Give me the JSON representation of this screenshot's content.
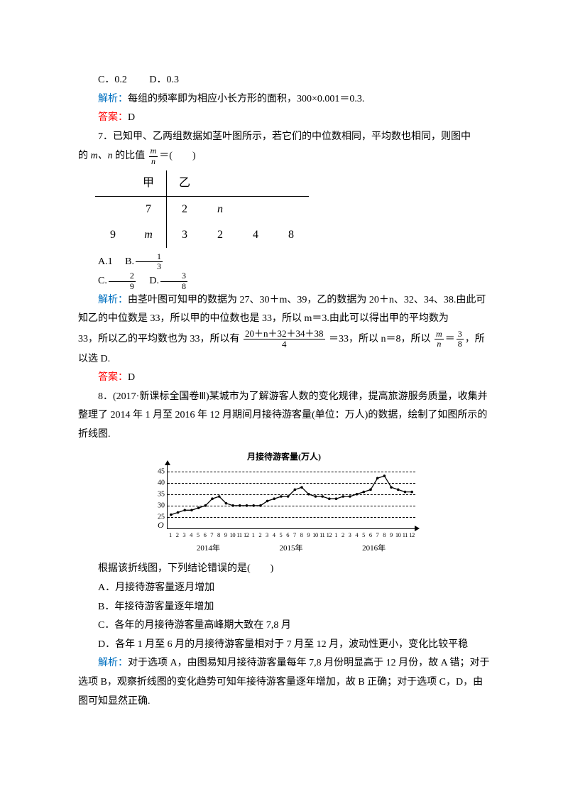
{
  "q6": {
    "option_c": "C．0.2",
    "option_d": "D．0.3",
    "analysis_label": "解析：",
    "analysis_text": "每组的频率即为相应小长方形的面积，300×0.001＝0.3.",
    "answer_label": "答案：",
    "answer_value": "D"
  },
  "q7": {
    "stem_line1": "7．已知甲、乙两组数据如茎叶图所示，若它们的中位数相同，平均数也相同，则图中",
    "stem_line2_prefix": "的 ",
    "stem_line2_vars": "m、n",
    "stem_line2_mid": " 的比值",
    "stem_line2_frac_num": "m",
    "stem_line2_frac_den": "n",
    "stem_line2_suffix": "＝(　　)",
    "stemleaf": {
      "head_left": "甲",
      "head_right": "乙",
      "rows": [
        [
          "",
          "7",
          "2",
          "n",
          "",
          ""
        ],
        [
          "9",
          "m",
          "3",
          "2",
          "4",
          "8"
        ]
      ]
    },
    "opt_a": "A.1",
    "opt_b_label": "B.",
    "opt_b_num": "1",
    "opt_b_den": "3",
    "opt_c_label": "C.",
    "opt_c_num": "2",
    "opt_c_den": "9",
    "opt_d_label": "D.",
    "opt_d_num": "3",
    "opt_d_den": "8",
    "analysis_label": "解析：",
    "analysis_p1": "由茎叶图可知甲的数据为 27、30＋m、39，乙的数据为 20＋n、32、34、38.由此可知乙的中位数是 33，所以甲的中位数也是 33，所以 m＝3.由此可以得出甲的平均数为",
    "analysis_p2_prefix": "33，所以乙的平均数也为 33，所以有",
    "avg_frac_num": "20＋n＋32＋34＋38",
    "avg_frac_den": "4",
    "analysis_p2_mid": "＝33，所以 n＝8，所以",
    "res_frac_lhs_num": "m",
    "res_frac_lhs_den": "n",
    "res_eq": "＝",
    "res_frac_rhs_num": "3",
    "res_frac_rhs_den": "8",
    "analysis_p2_suffix": "，所以选 D.",
    "answer_label": "答案：",
    "answer_value": "D"
  },
  "q8": {
    "stem_p1": "8．(2017·新课标全国卷Ⅲ)某城市为了解游客人数的变化规律，提高旅游服务质量，收集并整理了 2014 年 1 月至 2016 年 12 月期间月接待游客量(单位：万人)的数据，绘制了如图所示的折线图.",
    "chart": {
      "title": "月接待游客量(万人)",
      "y_ticks": [
        25,
        30,
        35,
        40,
        45
      ],
      "y_min": 20,
      "y_max": 48,
      "months": [
        "1",
        "2",
        "3",
        "4",
        "5",
        "6",
        "7",
        "8",
        "9",
        "10",
        "11",
        "12",
        "1",
        "2",
        "3",
        "4",
        "5",
        "6",
        "7",
        "8",
        "9",
        "10",
        "11",
        "12",
        "1",
        "2",
        "3",
        "4",
        "5",
        "6",
        "7",
        "8",
        "9",
        "10",
        "11",
        "12"
      ],
      "years": [
        "2014年",
        "2015年",
        "2016年"
      ],
      "values": [
        26,
        27,
        28,
        28,
        29,
        30,
        33,
        34,
        31,
        30,
        30,
        30,
        30,
        30,
        32,
        33,
        34,
        34,
        37,
        38,
        35,
        34,
        34,
        33,
        33,
        34,
        34,
        35,
        36,
        37,
        42,
        43,
        38,
        37,
        36,
        36
      ],
      "line_color": "#000000",
      "marker_color": "#000000",
      "grid_color": "#000000",
      "background": "#ffffff"
    },
    "prompt": "根据该折线图，下列结论错误的是(　　)",
    "opt_a": "A．月接待游客量逐月增加",
    "opt_b": "B．年接待游客量逐年增加",
    "opt_c": "C．各年的月接待游客量高峰期大致在 7,8 月",
    "opt_d": "D．各年 1 月至 6 月的月接待游客量相对于 7 月至 12 月，波动性更小，变化比较平稳",
    "analysis_label": "解析：",
    "analysis_text": "对于选项 A，由图易知月接待游客量每年 7,8 月份明显高于 12 月份，故 A 错；对于选项 B，观察折线图的变化趋势可知年接待游客量逐年增加，故 B 正确；对于选项 C，D，由图可知显然正确."
  }
}
